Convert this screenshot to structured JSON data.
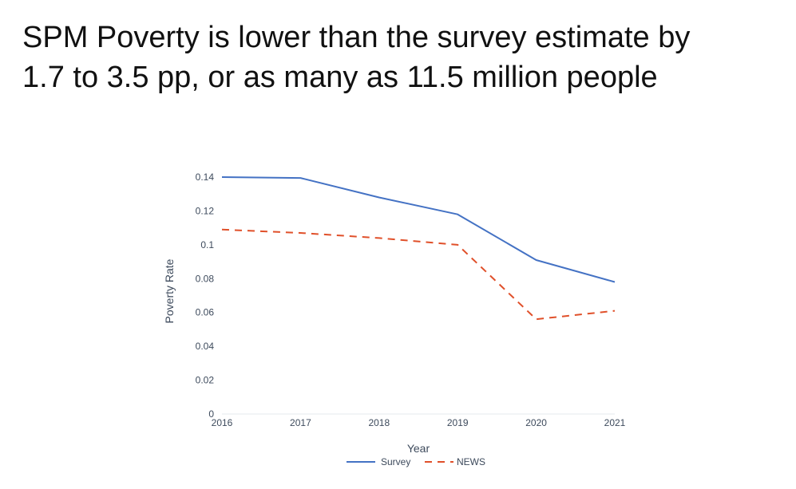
{
  "slide": {
    "title_line1": "SPM Poverty is lower than the survey estimate by",
    "title_line2": "1.7 to 3.5 pp, or as many as 11.5 million people"
  },
  "chart_data": {
    "type": "line",
    "x": [
      2016,
      2017,
      2018,
      2019,
      2020,
      2021
    ],
    "x_tick_labels": [
      "2016",
      "2017",
      "2018",
      "2019",
      "2020",
      "2021"
    ],
    "y_ticks": [
      0,
      0.02,
      0.04,
      0.06,
      0.08,
      0.1,
      0.12,
      0.14
    ],
    "y_tick_labels": [
      "0",
      "0.02",
      "0.04",
      "0.06",
      "0.08",
      "0.1",
      "0.12",
      "0.14"
    ],
    "ylim": [
      0,
      0.14
    ],
    "xlabel": "Year",
    "ylabel": "Poverty Rate",
    "grid": false,
    "legend_position": "bottom-center",
    "series": [
      {
        "name": "Survey",
        "values": [
          0.14,
          0.1395,
          0.128,
          0.118,
          0.091,
          0.078
        ],
        "color": "#4472c4",
        "dash": "solid"
      },
      {
        "name": "NEWS",
        "values": [
          0.109,
          0.107,
          0.104,
          0.1,
          0.056,
          0.061
        ],
        "color": "#e0502a",
        "dash": "dashed"
      }
    ]
  }
}
